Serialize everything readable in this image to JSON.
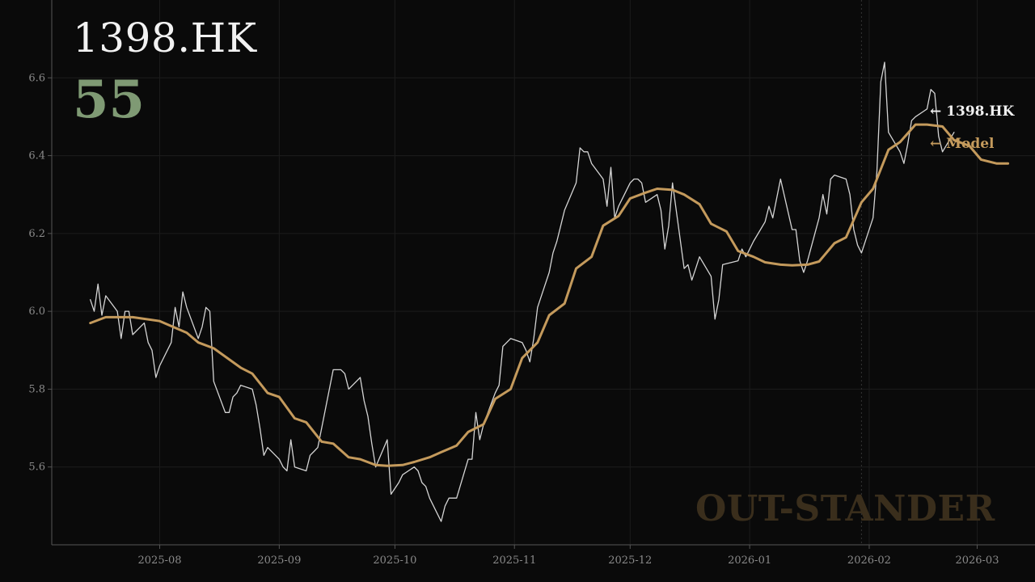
{
  "ticker": "1398.HK",
  "score": "55",
  "watermark": "OUT-STANDER",
  "colors": {
    "background": "#0a0a0a",
    "price_line": "#d4d4d4",
    "model_line": "#c49a5c",
    "score": "#7f9a74",
    "watermark": "#3a2e1c",
    "axis": "#555555",
    "grid": "#1c1c1c",
    "tick_label": "#8a8a8a",
    "title": "#f2f2f2"
  },
  "legend": {
    "price_label": "← 1398.HK",
    "model_label": "← Model"
  },
  "chart_data": {
    "type": "line",
    "x_axis": {
      "type": "date",
      "range": [
        "2025-07-04",
        "2026-03-16"
      ],
      "ticks": [
        "2025-08",
        "2025-09",
        "2025-10",
        "2025-11",
        "2025-12",
        "2026-01",
        "2026-02",
        "2026-03"
      ]
    },
    "y_axis": {
      "range": [
        5.4,
        6.8
      ],
      "ticks": [
        "5.6",
        "5.8",
        "6.0",
        "6.2",
        "6.4",
        "6.6"
      ]
    },
    "grid": true,
    "highlight_date": "2026-01-30",
    "series": [
      {
        "name": "1398.HK",
        "points": [
          [
            "2025-07-14",
            6.03
          ],
          [
            "2025-07-15",
            6.0
          ],
          [
            "2025-07-16",
            6.07
          ],
          [
            "2025-07-17",
            5.99
          ],
          [
            "2025-07-18",
            6.04
          ],
          [
            "2025-07-21",
            6.0
          ],
          [
            "2025-07-22",
            5.93
          ],
          [
            "2025-07-23",
            6.0
          ],
          [
            "2025-07-24",
            6.0
          ],
          [
            "2025-07-25",
            5.94
          ],
          [
            "2025-07-28",
            5.97
          ],
          [
            "2025-07-29",
            5.92
          ],
          [
            "2025-07-30",
            5.9
          ],
          [
            "2025-07-31",
            5.83
          ],
          [
            "2025-08-01",
            5.86
          ],
          [
            "2025-08-04",
            5.92
          ],
          [
            "2025-08-05",
            6.01
          ],
          [
            "2025-08-06",
            5.96
          ],
          [
            "2025-08-07",
            6.05
          ],
          [
            "2025-08-08",
            6.01
          ],
          [
            "2025-08-11",
            5.93
          ],
          [
            "2025-08-12",
            5.96
          ],
          [
            "2025-08-13",
            6.01
          ],
          [
            "2025-08-14",
            6.0
          ],
          [
            "2025-08-15",
            5.82
          ],
          [
            "2025-08-18",
            5.74
          ],
          [
            "2025-08-19",
            5.74
          ],
          [
            "2025-08-20",
            5.78
          ],
          [
            "2025-08-21",
            5.79
          ],
          [
            "2025-08-22",
            5.81
          ],
          [
            "2025-08-25",
            5.8
          ],
          [
            "2025-08-26",
            5.76
          ],
          [
            "2025-08-27",
            5.7
          ],
          [
            "2025-08-28",
            5.63
          ],
          [
            "2025-08-29",
            5.65
          ],
          [
            "2025-09-01",
            5.62
          ],
          [
            "2025-09-02",
            5.6
          ],
          [
            "2025-09-03",
            5.59
          ],
          [
            "2025-09-04",
            5.67
          ],
          [
            "2025-09-05",
            5.6
          ],
          [
            "2025-09-08",
            5.59
          ],
          [
            "2025-09-09",
            5.63
          ],
          [
            "2025-09-10",
            5.64
          ],
          [
            "2025-09-11",
            5.65
          ],
          [
            "2025-09-12",
            5.7
          ],
          [
            "2025-09-15",
            5.85
          ],
          [
            "2025-09-16",
            5.85
          ],
          [
            "2025-09-17",
            5.85
          ],
          [
            "2025-09-18",
            5.84
          ],
          [
            "2025-09-19",
            5.8
          ],
          [
            "2025-09-22",
            5.83
          ],
          [
            "2025-09-23",
            5.77
          ],
          [
            "2025-09-24",
            5.73
          ],
          [
            "2025-09-25",
            5.66
          ],
          [
            "2025-09-26",
            5.6
          ],
          [
            "2025-09-29",
            5.67
          ],
          [
            "2025-09-30",
            5.53
          ],
          [
            "2025-10-02",
            5.56
          ],
          [
            "2025-10-03",
            5.58
          ],
          [
            "2025-10-06",
            5.6
          ],
          [
            "2025-10-07",
            5.59
          ],
          [
            "2025-10-08",
            5.56
          ],
          [
            "2025-10-09",
            5.55
          ],
          [
            "2025-10-10",
            5.52
          ],
          [
            "2025-10-13",
            5.46
          ],
          [
            "2025-10-14",
            5.5
          ],
          [
            "2025-10-15",
            5.52
          ],
          [
            "2025-10-16",
            5.52
          ],
          [
            "2025-10-17",
            5.52
          ],
          [
            "2025-10-20",
            5.62
          ],
          [
            "2025-10-21",
            5.62
          ],
          [
            "2025-10-22",
            5.74
          ],
          [
            "2025-10-23",
            5.67
          ],
          [
            "2025-10-24",
            5.71
          ],
          [
            "2025-10-27",
            5.79
          ],
          [
            "2025-10-28",
            5.81
          ],
          [
            "2025-10-29",
            5.91
          ],
          [
            "2025-10-30",
            5.92
          ],
          [
            "2025-10-31",
            5.93
          ],
          [
            "2025-11-03",
            5.92
          ],
          [
            "2025-11-04",
            5.9
          ],
          [
            "2025-11-05",
            5.87
          ],
          [
            "2025-11-06",
            5.93
          ],
          [
            "2025-11-07",
            6.01
          ],
          [
            "2025-11-10",
            6.1
          ],
          [
            "2025-11-11",
            6.15
          ],
          [
            "2025-11-12",
            6.18
          ],
          [
            "2025-11-13",
            6.22
          ],
          [
            "2025-11-14",
            6.26
          ],
          [
            "2025-11-17",
            6.33
          ],
          [
            "2025-11-18",
            6.42
          ],
          [
            "2025-11-19",
            6.41
          ],
          [
            "2025-11-20",
            6.41
          ],
          [
            "2025-11-21",
            6.38
          ],
          [
            "2025-11-24",
            6.34
          ],
          [
            "2025-11-25",
            6.27
          ],
          [
            "2025-11-26",
            6.37
          ],
          [
            "2025-11-27",
            6.24
          ],
          [
            "2025-11-28",
            6.27
          ],
          [
            "2025-12-01",
            6.33
          ],
          [
            "2025-12-02",
            6.34
          ],
          [
            "2025-12-03",
            6.34
          ],
          [
            "2025-12-04",
            6.33
          ],
          [
            "2025-12-05",
            6.28
          ],
          [
            "2025-12-08",
            6.3
          ],
          [
            "2025-12-09",
            6.26
          ],
          [
            "2025-12-10",
            6.16
          ],
          [
            "2025-12-11",
            6.22
          ],
          [
            "2025-12-12",
            6.33
          ],
          [
            "2025-12-15",
            6.11
          ],
          [
            "2025-12-16",
            6.12
          ],
          [
            "2025-12-17",
            6.08
          ],
          [
            "2025-12-18",
            6.11
          ],
          [
            "2025-12-19",
            6.14
          ],
          [
            "2025-12-22",
            6.09
          ],
          [
            "2025-12-23",
            5.98
          ],
          [
            "2025-12-24",
            6.03
          ],
          [
            "2025-12-25",
            6.12
          ],
          [
            "2025-12-29",
            6.13
          ],
          [
            "2025-12-30",
            6.16
          ],
          [
            "2025-12-31",
            6.14
          ],
          [
            "2026-01-02",
            6.18
          ],
          [
            "2026-01-05",
            6.23
          ],
          [
            "2026-01-06",
            6.27
          ],
          [
            "2026-01-07",
            6.24
          ],
          [
            "2026-01-08",
            6.29
          ],
          [
            "2026-01-09",
            6.34
          ],
          [
            "2026-01-12",
            6.21
          ],
          [
            "2026-01-13",
            6.21
          ],
          [
            "2026-01-14",
            6.13
          ],
          [
            "2026-01-15",
            6.1
          ],
          [
            "2026-01-16",
            6.13
          ],
          [
            "2026-01-19",
            6.24
          ],
          [
            "2026-01-20",
            6.3
          ],
          [
            "2026-01-21",
            6.25
          ],
          [
            "2026-01-22",
            6.34
          ],
          [
            "2026-01-23",
            6.35
          ],
          [
            "2026-01-26",
            6.34
          ],
          [
            "2026-01-27",
            6.3
          ],
          [
            "2026-01-28",
            6.21
          ],
          [
            "2026-01-29",
            6.17
          ],
          [
            "2026-01-30",
            6.15
          ],
          [
            "2026-02-02",
            6.24
          ],
          [
            "2026-02-03",
            6.36
          ],
          [
            "2026-02-04",
            6.59
          ],
          [
            "2026-02-05",
            6.64
          ],
          [
            "2026-02-06",
            6.46
          ],
          [
            "2026-02-09",
            6.41
          ],
          [
            "2026-02-10",
            6.38
          ],
          [
            "2026-02-11",
            6.43
          ],
          [
            "2026-02-12",
            6.49
          ],
          [
            "2026-02-13",
            6.5
          ],
          [
            "2026-02-16",
            6.52
          ],
          [
            "2026-02-17",
            6.57
          ],
          [
            "2026-02-18",
            6.56
          ],
          [
            "2026-02-19",
            6.45
          ],
          [
            "2026-02-20",
            6.41
          ],
          [
            "2026-02-23",
            6.46
          ]
        ]
      },
      {
        "name": "Model",
        "points": [
          [
            "2025-07-14",
            5.97
          ],
          [
            "2025-07-18",
            5.985
          ],
          [
            "2025-07-25",
            5.985
          ],
          [
            "2025-08-01",
            5.975
          ],
          [
            "2025-08-08",
            5.945
          ],
          [
            "2025-08-11",
            5.92
          ],
          [
            "2025-08-15",
            5.905
          ],
          [
            "2025-08-22",
            5.855
          ],
          [
            "2025-08-25",
            5.84
          ],
          [
            "2025-08-29",
            5.79
          ],
          [
            "2025-09-01",
            5.78
          ],
          [
            "2025-09-05",
            5.725
          ],
          [
            "2025-09-08",
            5.715
          ],
          [
            "2025-09-12",
            5.665
          ],
          [
            "2025-09-15",
            5.66
          ],
          [
            "2025-09-19",
            5.625
          ],
          [
            "2025-09-22",
            5.62
          ],
          [
            "2025-09-26",
            5.605
          ],
          [
            "2025-09-29",
            5.603
          ],
          [
            "2025-10-03",
            5.605
          ],
          [
            "2025-10-06",
            5.613
          ],
          [
            "2025-10-10",
            5.625
          ],
          [
            "2025-10-13",
            5.638
          ],
          [
            "2025-10-17",
            5.655
          ],
          [
            "2025-10-20",
            5.69
          ],
          [
            "2025-10-24",
            5.71
          ],
          [
            "2025-10-27",
            5.775
          ],
          [
            "2025-10-31",
            5.8
          ],
          [
            "2025-11-03",
            5.88
          ],
          [
            "2025-11-07",
            5.92
          ],
          [
            "2025-11-10",
            5.99
          ],
          [
            "2025-11-14",
            6.02
          ],
          [
            "2025-11-17",
            6.11
          ],
          [
            "2025-11-21",
            6.14
          ],
          [
            "2025-11-24",
            6.22
          ],
          [
            "2025-11-28",
            6.245
          ],
          [
            "2025-12-01",
            6.29
          ],
          [
            "2025-12-05",
            6.305
          ],
          [
            "2025-12-08",
            6.315
          ],
          [
            "2025-12-12",
            6.312
          ],
          [
            "2025-12-15",
            6.3
          ],
          [
            "2025-12-19",
            6.275
          ],
          [
            "2025-12-22",
            6.225
          ],
          [
            "2025-12-26",
            6.205
          ],
          [
            "2025-12-29",
            6.155
          ],
          [
            "2026-01-02",
            6.14
          ],
          [
            "2026-01-05",
            6.126
          ],
          [
            "2026-01-09",
            6.12
          ],
          [
            "2026-01-12",
            6.118
          ],
          [
            "2026-01-16",
            6.12
          ],
          [
            "2026-01-19",
            6.128
          ],
          [
            "2026-01-23",
            6.175
          ],
          [
            "2026-01-26",
            6.19
          ],
          [
            "2026-01-30",
            6.28
          ],
          [
            "2026-02-02",
            6.315
          ],
          [
            "2026-02-06",
            6.415
          ],
          [
            "2026-02-09",
            6.435
          ],
          [
            "2026-02-13",
            6.48
          ],
          [
            "2026-02-16",
            6.48
          ],
          [
            "2026-02-20",
            6.475
          ],
          [
            "2026-02-23",
            6.44
          ],
          [
            "2026-02-27",
            6.425
          ],
          [
            "2026-03-02",
            6.39
          ],
          [
            "2026-03-06",
            6.38
          ],
          [
            "2026-03-09",
            6.38
          ]
        ]
      }
    ]
  }
}
